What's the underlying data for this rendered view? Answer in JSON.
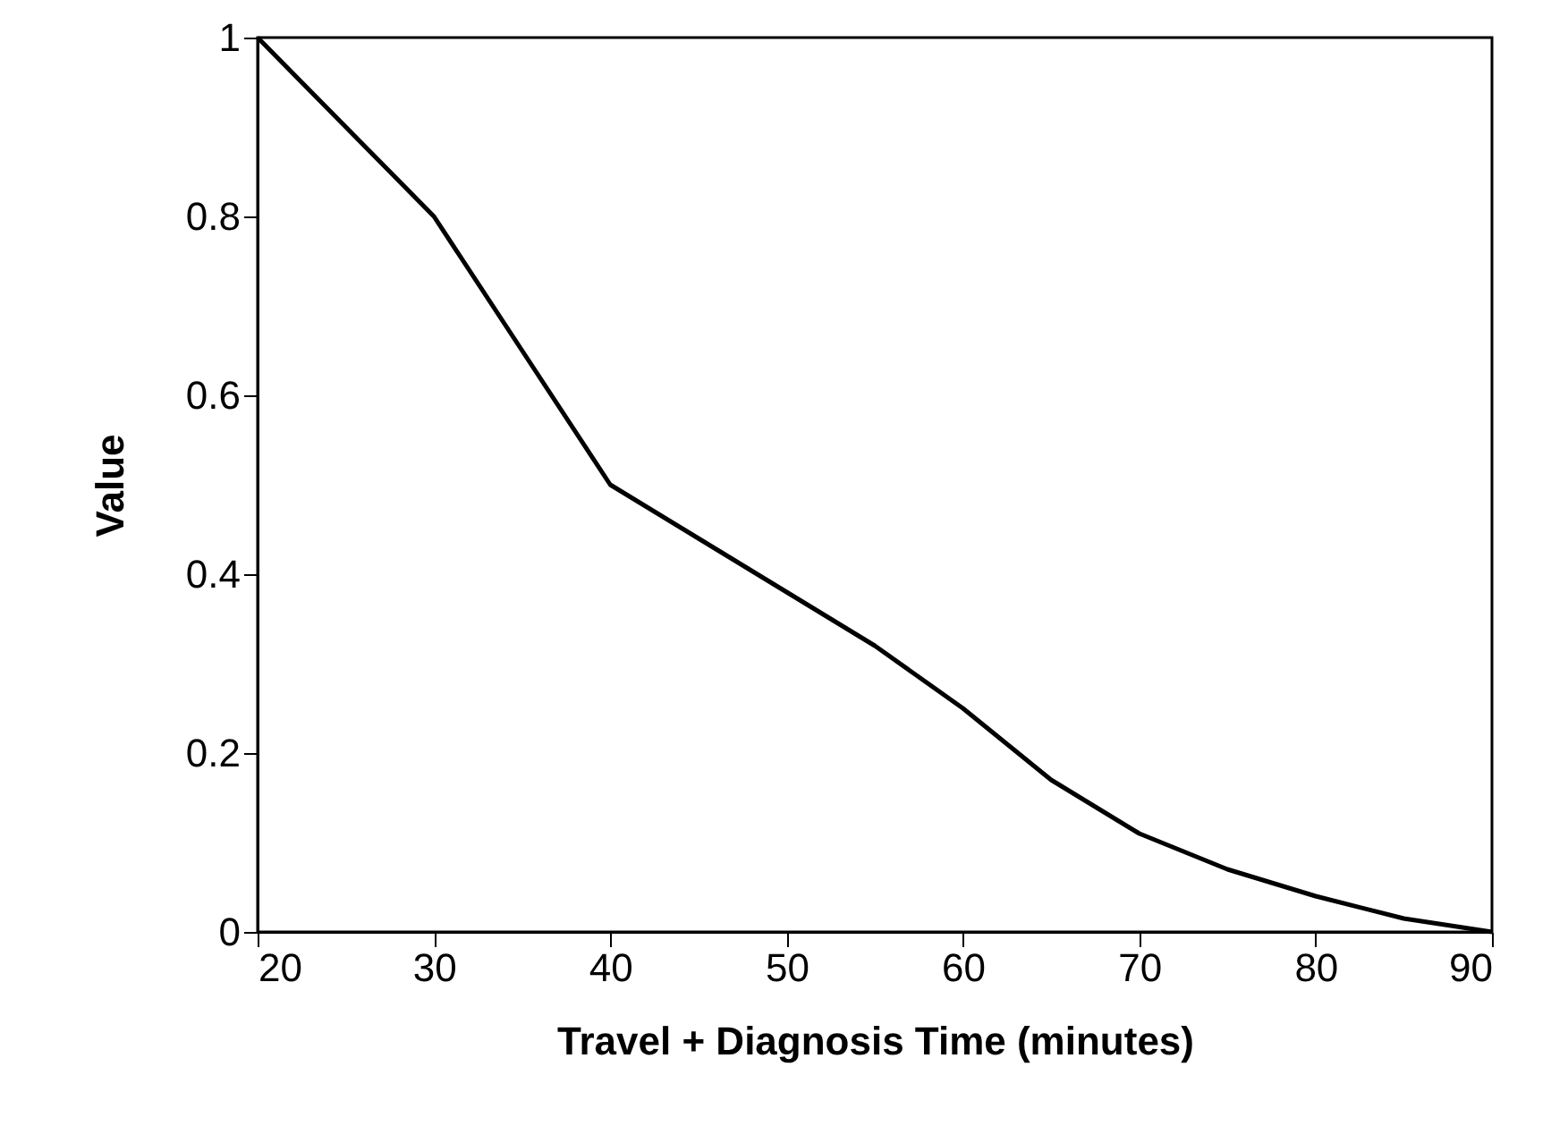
{
  "chart_data": {
    "type": "line",
    "xlabel": "Travel + Diagnosis Time (minutes)",
    "ylabel": "Value",
    "x": [
      20,
      25,
      30,
      35,
      40,
      45,
      50,
      55,
      60,
      65,
      70,
      75,
      80,
      85,
      90
    ],
    "series": [
      {
        "color": "#000000",
        "values": [
          1,
          0.9,
          0.8,
          0.65,
          0.5,
          0.44,
          0.38,
          0.32,
          0.25,
          0.17,
          0.11,
          0.07,
          0.04,
          0.015,
          0
        ]
      }
    ],
    "xlim": [
      20,
      90
    ],
    "xticks": [
      20,
      30,
      40,
      50,
      60,
      70,
      80,
      90
    ],
    "ylim": [
      0,
      1
    ],
    "yticks": [
      {
        "value": 0,
        "label": "0"
      },
      0.2,
      0.4,
      0.6,
      0.8,
      {
        "value": 1,
        "label": "1"
      }
    ],
    "grid": false,
    "marker": "none",
    "line_style": "solid"
  }
}
